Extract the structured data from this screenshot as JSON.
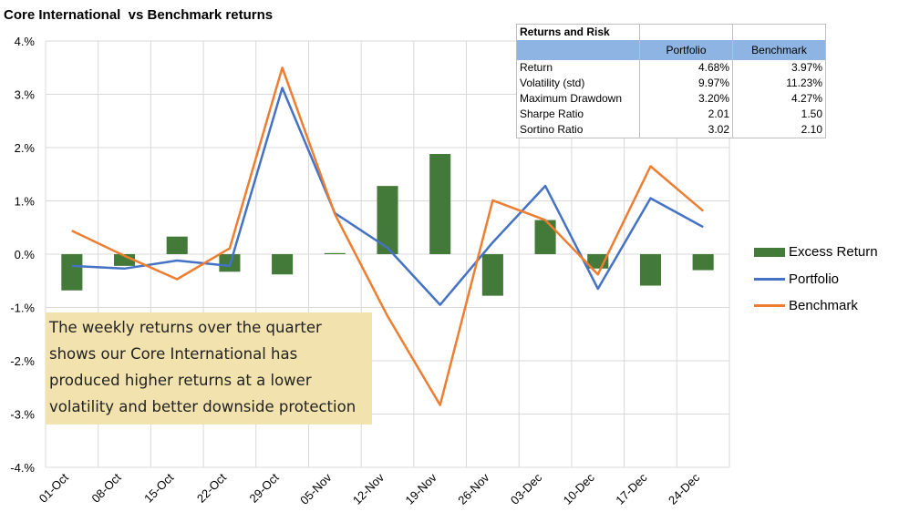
{
  "chart_data": {
    "type": "bar",
    "title": "Core International  vs Benchmark returns",
    "categories": [
      "01-Oct",
      "08-Oct",
      "15-Oct",
      "22-Oct",
      "29-Oct",
      "05-Nov",
      "12-Nov",
      "19-Nov",
      "26-Nov",
      "03-Dec",
      "10-Dec",
      "17-Dec",
      "24-Dec"
    ],
    "yticks": [
      "4.%",
      "3.%",
      "2.%",
      "1.%",
      "0.%",
      "-1.%",
      "-2.%",
      "-3.%",
      "-4.%"
    ],
    "ylim": [
      -4,
      4
    ],
    "grid": true,
    "legend_position": "right",
    "series": [
      {
        "name": "Excess Return",
        "kind": "bar",
        "color": "#447a39",
        "values": [
          -0.68,
          -0.22,
          0.33,
          -0.33,
          -0.38,
          0.02,
          1.28,
          1.88,
          -0.78,
          0.64,
          -0.27,
          -0.59,
          -0.3
        ]
      },
      {
        "name": "Portfolio",
        "kind": "line",
        "color": "#4472c4",
        "values": [
          -0.22,
          -0.27,
          -0.12,
          -0.22,
          3.12,
          0.77,
          0.12,
          -0.95,
          0.22,
          1.28,
          -0.65,
          1.05,
          0.51
        ]
      },
      {
        "name": "Benchmark",
        "kind": "line",
        "color": "#ed7d31",
        "values": [
          0.44,
          -0.03,
          -0.47,
          0.11,
          3.5,
          0.75,
          -1.16,
          -2.83,
          1.01,
          0.64,
          -0.38,
          1.65,
          0.81
        ]
      }
    ]
  },
  "table": {
    "title": "Returns and Risk",
    "columns": [
      "Portfolio",
      "Benchmark"
    ],
    "rows": [
      {
        "label": "Return",
        "portfolio": "4.68%",
        "benchmark": "3.97%"
      },
      {
        "label": "Volatility (std)",
        "portfolio": "9.97%",
        "benchmark": "11.23%"
      },
      {
        "label": "Maximum Drawdown",
        "portfolio": "3.20%",
        "benchmark": "4.27%"
      },
      {
        "label": "Sharpe Ratio",
        "portfolio": "2.01",
        "benchmark": "1.50"
      },
      {
        "label": "Sortino Ratio",
        "portfolio": "3.02",
        "benchmark": "2.10"
      }
    ]
  },
  "note": {
    "lines": [
      "The weekly returns over the quarter",
      "shows our Core International has",
      "produced higher returns at a lower",
      "volatility and better downside protection"
    ]
  }
}
